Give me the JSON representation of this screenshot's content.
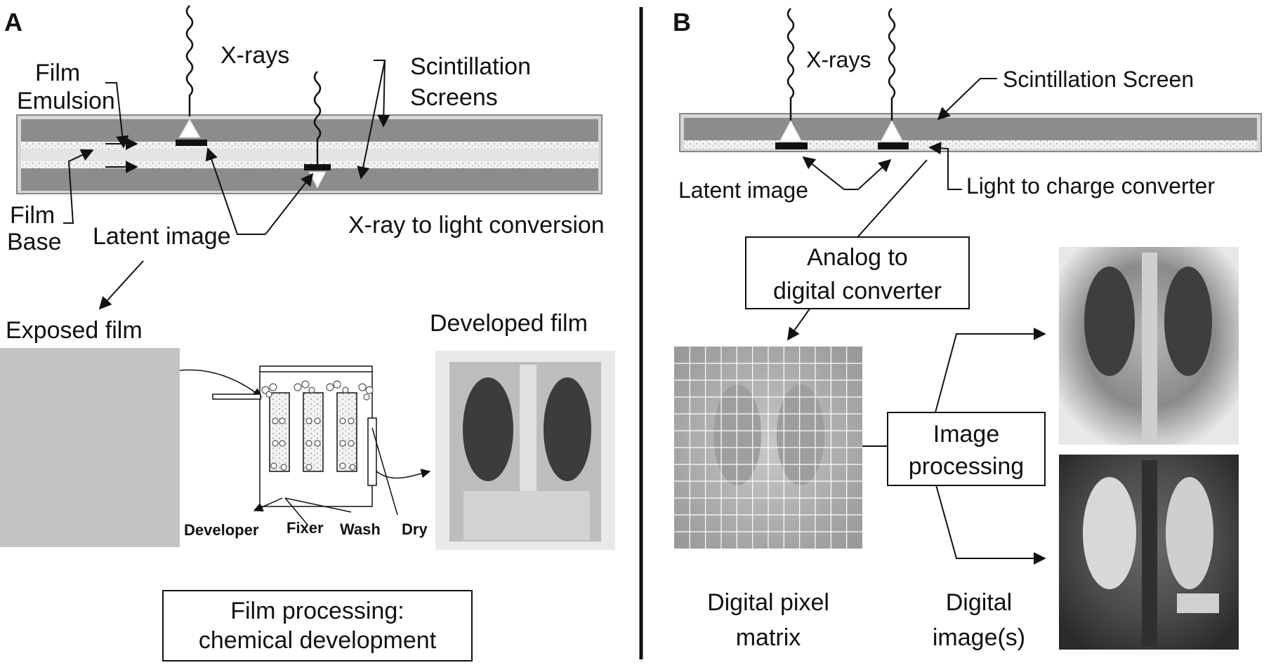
{
  "panel_a": {
    "letter": "A",
    "xrays": "X-rays",
    "film_emulsion_1": "Film",
    "film_emulsion_2": "Emulsion",
    "scint_screens_1": "Scintillation",
    "scint_screens_2": "Screens",
    "film_base_1": "Film",
    "film_base_2": "Base",
    "latent_image": "Latent image",
    "xray_to_light": "X-ray to light conversion",
    "exposed_film": "Exposed film",
    "developed_film": "Developed film",
    "developer": "Developer",
    "fixer": "Fixer",
    "wash": "Wash",
    "dry": "Dry",
    "film_processing_1": "Film processing:",
    "film_processing_2": "chemical development"
  },
  "panel_b": {
    "letter": "B",
    "xrays": "X-rays",
    "scint_screen": "Scintillation Screen",
    "latent_image": "Latent image",
    "light_to_charge": "Light to charge converter",
    "adc_1": "Analog to",
    "adc_2": "digital converter",
    "image_processing_1": "Image",
    "image_processing_2": "processing",
    "pixel_matrix_1": "Digital pixel",
    "pixel_matrix_2": "matrix",
    "digital_images_1": "Digital",
    "digital_images_2": "image(s)"
  },
  "colors": {
    "screen_gray": "#8c8c8c",
    "emulsion_light": "#e4e4e4",
    "film_gray": "#c3c3c3",
    "ink": "#111111"
  }
}
